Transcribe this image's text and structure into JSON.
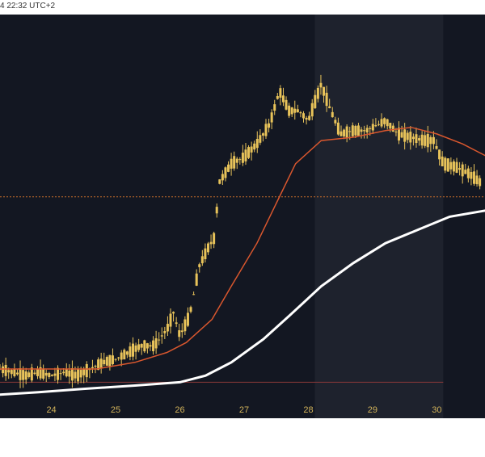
{
  "header": {
    "timestamp": "4 22:32 UTC+2"
  },
  "colors": {
    "background": "#131722",
    "highlight_band": "#1e222d",
    "candle": "#e8c35a",
    "ma_fast": "#d9572e",
    "ma_slow": "#ffffff",
    "tick_text": "#d1b25a",
    "ref_line_orange": "#c46b2a",
    "ref_line_red": "#8b3a3a"
  },
  "chart_data": {
    "type": "candlestick",
    "x_ticks": [
      "24",
      "25",
      "26",
      "27",
      "28",
      "29",
      "30"
    ],
    "price_series_y": [
      {
        "day": 23.2,
        "v": 0.1
      },
      {
        "day": 23.4,
        "v": 0.09
      },
      {
        "day": 23.6,
        "v": 0.08
      },
      {
        "day": 23.8,
        "v": 0.09
      },
      {
        "day": 24.0,
        "v": 0.08
      },
      {
        "day": 24.2,
        "v": 0.09
      },
      {
        "day": 24.4,
        "v": 0.08
      },
      {
        "day": 24.6,
        "v": 0.1
      },
      {
        "day": 24.8,
        "v": 0.12
      },
      {
        "day": 25.0,
        "v": 0.13
      },
      {
        "day": 25.2,
        "v": 0.15
      },
      {
        "day": 25.4,
        "v": 0.17
      },
      {
        "day": 25.6,
        "v": 0.17
      },
      {
        "day": 25.8,
        "v": 0.22
      },
      {
        "day": 25.9,
        "v": 0.27
      },
      {
        "day": 26.0,
        "v": 0.2
      },
      {
        "day": 26.15,
        "v": 0.26
      },
      {
        "day": 26.3,
        "v": 0.41
      },
      {
        "day": 26.45,
        "v": 0.47
      },
      {
        "day": 26.55,
        "v": 0.5
      },
      {
        "day": 26.6,
        "v": 0.66
      },
      {
        "day": 26.8,
        "v": 0.72
      },
      {
        "day": 27.0,
        "v": 0.74
      },
      {
        "day": 27.2,
        "v": 0.78
      },
      {
        "day": 27.4,
        "v": 0.84
      },
      {
        "day": 27.55,
        "v": 0.94
      },
      {
        "day": 27.7,
        "v": 0.88
      },
      {
        "day": 27.85,
        "v": 0.88
      },
      {
        "day": 28.0,
        "v": 0.85
      },
      {
        "day": 28.2,
        "v": 0.96
      },
      {
        "day": 28.35,
        "v": 0.88
      },
      {
        "day": 28.5,
        "v": 0.81
      },
      {
        "day": 28.7,
        "v": 0.82
      },
      {
        "day": 28.9,
        "v": 0.82
      },
      {
        "day": 29.2,
        "v": 0.85
      },
      {
        "day": 29.4,
        "v": 0.81
      },
      {
        "day": 29.6,
        "v": 0.8
      },
      {
        "day": 29.8,
        "v": 0.79
      },
      {
        "day": 29.95,
        "v": 0.79
      },
      {
        "day": 30.1,
        "v": 0.72
      },
      {
        "day": 30.3,
        "v": 0.71
      },
      {
        "day": 30.5,
        "v": 0.69
      },
      {
        "day": 30.7,
        "v": 0.66
      }
    ],
    "ma_fast": [
      {
        "day": 23.0,
        "v": 0.1
      },
      {
        "day": 24.0,
        "v": 0.1
      },
      {
        "day": 24.7,
        "v": 0.1
      },
      {
        "day": 25.3,
        "v": 0.12
      },
      {
        "day": 25.8,
        "v": 0.15
      },
      {
        "day": 26.1,
        "v": 0.18
      },
      {
        "day": 26.5,
        "v": 0.25
      },
      {
        "day": 26.8,
        "v": 0.35
      },
      {
        "day": 27.2,
        "v": 0.48
      },
      {
        "day": 27.5,
        "v": 0.6
      },
      {
        "day": 27.8,
        "v": 0.72
      },
      {
        "day": 28.2,
        "v": 0.79
      },
      {
        "day": 28.7,
        "v": 0.8
      },
      {
        "day": 29.2,
        "v": 0.82
      },
      {
        "day": 29.6,
        "v": 0.83
      },
      {
        "day": 30.0,
        "v": 0.81
      },
      {
        "day": 30.4,
        "v": 0.78
      },
      {
        "day": 30.8,
        "v": 0.74
      }
    ],
    "ma_slow": [
      {
        "day": 23.0,
        "v": 0.02
      },
      {
        "day": 23.8,
        "v": 0.03
      },
      {
        "day": 24.5,
        "v": 0.04
      },
      {
        "day": 25.3,
        "v": 0.05
      },
      {
        "day": 26.0,
        "v": 0.06
      },
      {
        "day": 26.4,
        "v": 0.08
      },
      {
        "day": 26.8,
        "v": 0.12
      },
      {
        "day": 27.3,
        "v": 0.19
      },
      {
        "day": 27.7,
        "v": 0.26
      },
      {
        "day": 28.2,
        "v": 0.35
      },
      {
        "day": 28.7,
        "v": 0.42
      },
      {
        "day": 29.2,
        "v": 0.48
      },
      {
        "day": 29.7,
        "v": 0.52
      },
      {
        "day": 30.2,
        "v": 0.56
      },
      {
        "day": 30.8,
        "v": 0.58
      }
    ],
    "reference_lines": [
      {
        "name": "orange-dotted",
        "v": 0.62
      },
      {
        "name": "red-solid",
        "v": 0.06
      }
    ],
    "highlight_bands": [
      {
        "from": 28.1,
        "to": 30.1
      }
    ],
    "grid": false
  }
}
